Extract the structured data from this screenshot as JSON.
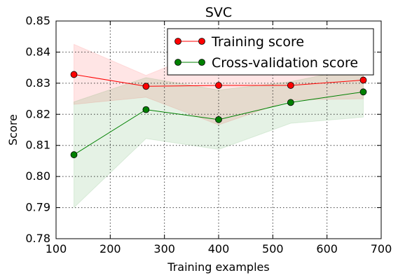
{
  "chart_data": {
    "type": "line",
    "title": "SVC",
    "xlabel": "Training examples",
    "ylabel": "Score",
    "xlim": [
      100,
      700
    ],
    "ylim": [
      0.78,
      0.85
    ],
    "xticks": [
      100,
      200,
      300,
      400,
      500,
      600,
      700
    ],
    "yticks": [
      "0.78",
      "0.79",
      "0.80",
      "0.81",
      "0.82",
      "0.83",
      "0.84",
      "0.85"
    ],
    "grid": true,
    "legend_position": "top-right",
    "x": [
      133,
      266,
      400,
      533,
      667
    ],
    "series": [
      {
        "name": "Training score",
        "color": "#ff0000",
        "band_color": "#ff0000",
        "values": [
          0.8328,
          0.829,
          0.8293,
          0.8293,
          0.831
        ],
        "band_upper": [
          0.8425,
          0.8325,
          0.842,
          0.834,
          0.837
        ],
        "band_lower": [
          0.8232,
          0.8255,
          0.8166,
          0.8246,
          0.825
        ]
      },
      {
        "name": "Cross-validation score",
        "color": "#008000",
        "band_color": "#008000",
        "values": [
          0.807,
          0.8215,
          0.8183,
          0.8238,
          0.8272
        ],
        "band_upper": [
          0.824,
          0.8318,
          0.8278,
          0.8305,
          0.8352
        ],
        "band_lower": [
          0.79,
          0.8122,
          0.8087,
          0.8171,
          0.8191
        ]
      }
    ]
  }
}
